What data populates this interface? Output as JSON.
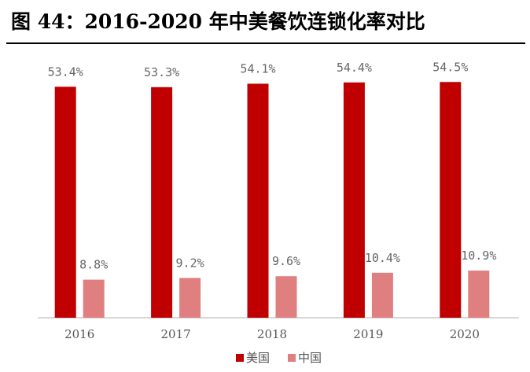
{
  "title": "图 44：2016-2020 年中美餐饮连锁化率对比",
  "chart_data": {
    "type": "bar",
    "title": "图 44：2016-2020 年中美餐饮连锁化率对比",
    "categories": [
      "2016",
      "2017",
      "2018",
      "2019",
      "2020"
    ],
    "series": [
      {
        "name": "美国",
        "values": [
          53.4,
          53.3,
          54.1,
          54.4,
          54.5
        ],
        "labels": [
          "53.4%",
          "53.3%",
          "54.1%",
          "54.4%",
          "54.5%"
        ],
        "color": "#c00000"
      },
      {
        "name": "中国",
        "values": [
          8.8,
          9.2,
          9.6,
          10.4,
          10.9
        ],
        "labels": [
          "8.8%",
          "9.2%",
          "9.6%",
          "10.4%",
          "10.9%"
        ],
        "color": "#e07f80"
      }
    ],
    "xlabel": "",
    "ylabel": "",
    "ylim": [
      0,
      60
    ],
    "grid": false,
    "legend": "bottom"
  },
  "colors": {
    "axis": "#bfbfbf",
    "text": "#555555"
  }
}
